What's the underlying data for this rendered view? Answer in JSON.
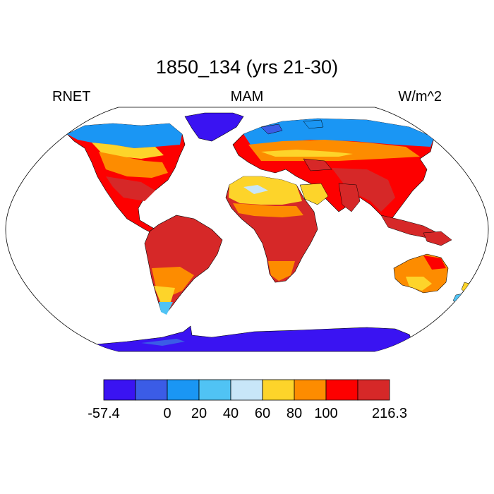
{
  "title": "1850_134 (yrs 21-30)",
  "left_label": "RNET",
  "center_label": "MAM",
  "right_label": "W/m^2",
  "colorbar": {
    "colors": [
      "#3a13f2",
      "#3b5ce6",
      "#1a96f4",
      "#50c3f4",
      "#c8e6f8",
      "#fdd42a",
      "#fd8c00",
      "#fd0000",
      "#d62828"
    ],
    "tick_labels": [
      "-57.4",
      "0",
      "20",
      "40",
      "60",
      "80",
      "100",
      "216.3"
    ],
    "tick_boundaries": [
      0,
      2,
      3,
      4,
      5,
      6,
      7,
      9
    ]
  }
}
